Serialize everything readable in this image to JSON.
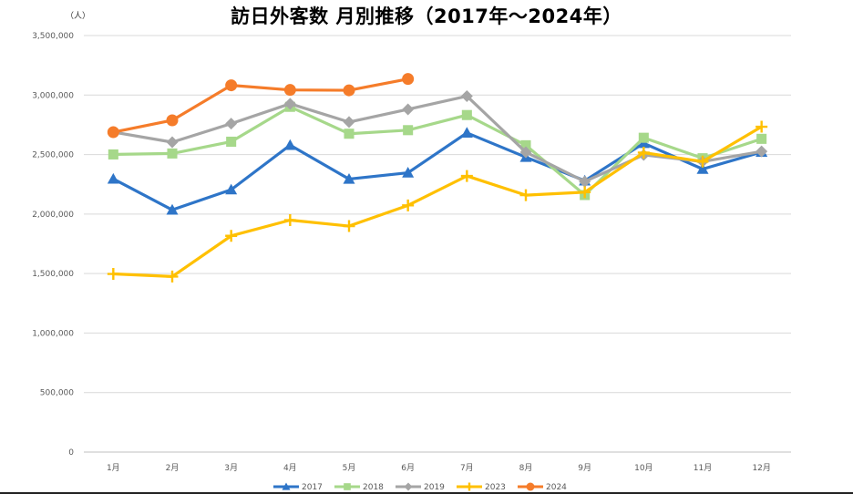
{
  "chart_data": {
    "type": "line",
    "title": "訪日外客数 月別推移（2017年～2024年）",
    "unit_label": "（人）",
    "categories": [
      "1月",
      "2月",
      "3月",
      "4月",
      "5月",
      "6月",
      "7月",
      "8月",
      "9月",
      "10月",
      "11月",
      "12月"
    ],
    "y_ticks": [
      0,
      500000,
      1000000,
      1500000,
      2000000,
      2500000,
      3000000,
      3500000
    ],
    "y_tick_labels": [
      "0",
      "500,000",
      "1,000,000",
      "1,500,000",
      "2,000,000",
      "2,500,000",
      "3,000,000",
      "3,500,000"
    ],
    "ylim": [
      0,
      3500000
    ],
    "grid": true,
    "legend_position": "bottom",
    "series": [
      {
        "name": "2017",
        "color": "#2e75c8",
        "marker": "triangle",
        "values": [
          2295000,
          2035000,
          2205000,
          2579000,
          2294000,
          2347000,
          2682000,
          2478000,
          2280000,
          2595000,
          2378000,
          2521000
        ]
      },
      {
        "name": "2018",
        "color": "#a6d88a",
        "marker": "square",
        "values": [
          2501000,
          2509000,
          2608000,
          2901000,
          2675000,
          2705000,
          2832000,
          2578000,
          2160000,
          2641000,
          2469000,
          2632000
        ]
      },
      {
        "name": "2019",
        "color": "#a5a5a5",
        "marker": "diamond",
        "values": [
          2689000,
          2604000,
          2760000,
          2927000,
          2773000,
          2880000,
          2991000,
          2520000,
          2273000,
          2497000,
          2441000,
          2526000
        ]
      },
      {
        "name": "2023",
        "color": "#ffc000",
        "marker": "plus",
        "values": [
          1497000,
          1475000,
          1817000,
          1949000,
          1899000,
          2073000,
          2320000,
          2159000,
          2184000,
          2516000,
          2441000,
          2734000
        ]
      },
      {
        "name": "2024",
        "color": "#f57c2a",
        "marker": "circle",
        "values": [
          2688000,
          2788000,
          3082000,
          3043000,
          3040000,
          3135000,
          null,
          null,
          null,
          null,
          null,
          null
        ]
      }
    ]
  }
}
